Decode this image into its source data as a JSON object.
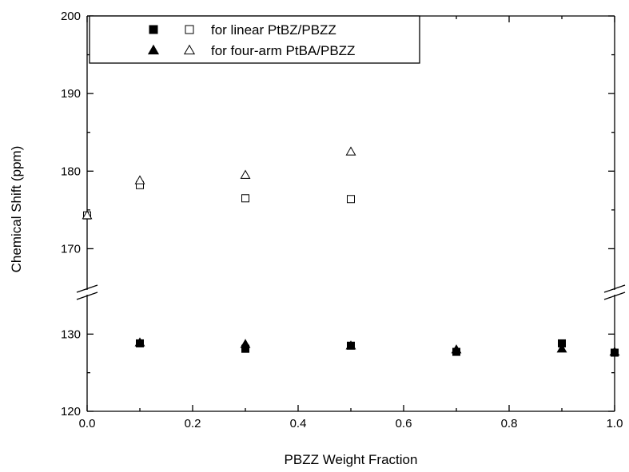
{
  "chart_data": {
    "type": "scatter",
    "xlabel": "PBZZ Weight Fraction",
    "ylabel": "Chemical Shift (ppm)",
    "xlim": [
      0.0,
      1.0
    ],
    "x_ticks": [
      "0.0",
      "0.2",
      "0.4",
      "0.6",
      "0.8",
      "1.0"
    ],
    "y_axis_break": true,
    "y_upper_segment": {
      "ylim": [
        165,
        200
      ],
      "ticks": [
        "170",
        "180",
        "190",
        "200"
      ]
    },
    "y_lower_segment": {
      "ylim": [
        120,
        135
      ],
      "ticks": [
        "120",
        "130"
      ]
    },
    "grid": false,
    "legend_position": "top-left",
    "legend": [
      {
        "filled_marker": "square",
        "open_marker": "square",
        "label": "for linear PtBZ/PBZZ"
      },
      {
        "filled_marker": "triangle",
        "open_marker": "triangle",
        "label": "for four-arm PtBA/PBZZ"
      }
    ],
    "series": [
      {
        "name": "for linear PtBZ/PBZZ",
        "marker": "square",
        "filled": true,
        "points": [
          [
            0.1,
            128.8
          ],
          [
            0.3,
            128.1
          ],
          [
            0.5,
            128.5
          ],
          [
            0.7,
            127.7
          ],
          [
            0.9,
            128.8
          ],
          [
            1.0,
            127.6
          ]
        ]
      },
      {
        "name": "for linear PtBZ/PBZZ",
        "marker": "square",
        "filled": false,
        "points": [
          [
            0.0,
            174.3
          ],
          [
            0.1,
            178.2
          ],
          [
            0.3,
            176.5
          ],
          [
            0.5,
            176.4
          ]
        ]
      },
      {
        "name": "for four-arm PtBA/PBZZ",
        "marker": "triangle",
        "filled": true,
        "points": [
          [
            0.1,
            128.9
          ],
          [
            0.3,
            128.7
          ],
          [
            0.5,
            128.5
          ],
          [
            0.7,
            128.0
          ],
          [
            0.9,
            128.1
          ],
          [
            1.0,
            127.7
          ]
        ]
      },
      {
        "name": "for four-arm PtBA/PBZZ",
        "marker": "triangle",
        "filled": false,
        "points": [
          [
            0.0,
            174.3
          ],
          [
            0.1,
            178.8
          ],
          [
            0.3,
            179.5
          ],
          [
            0.5,
            182.5
          ]
        ]
      }
    ]
  }
}
